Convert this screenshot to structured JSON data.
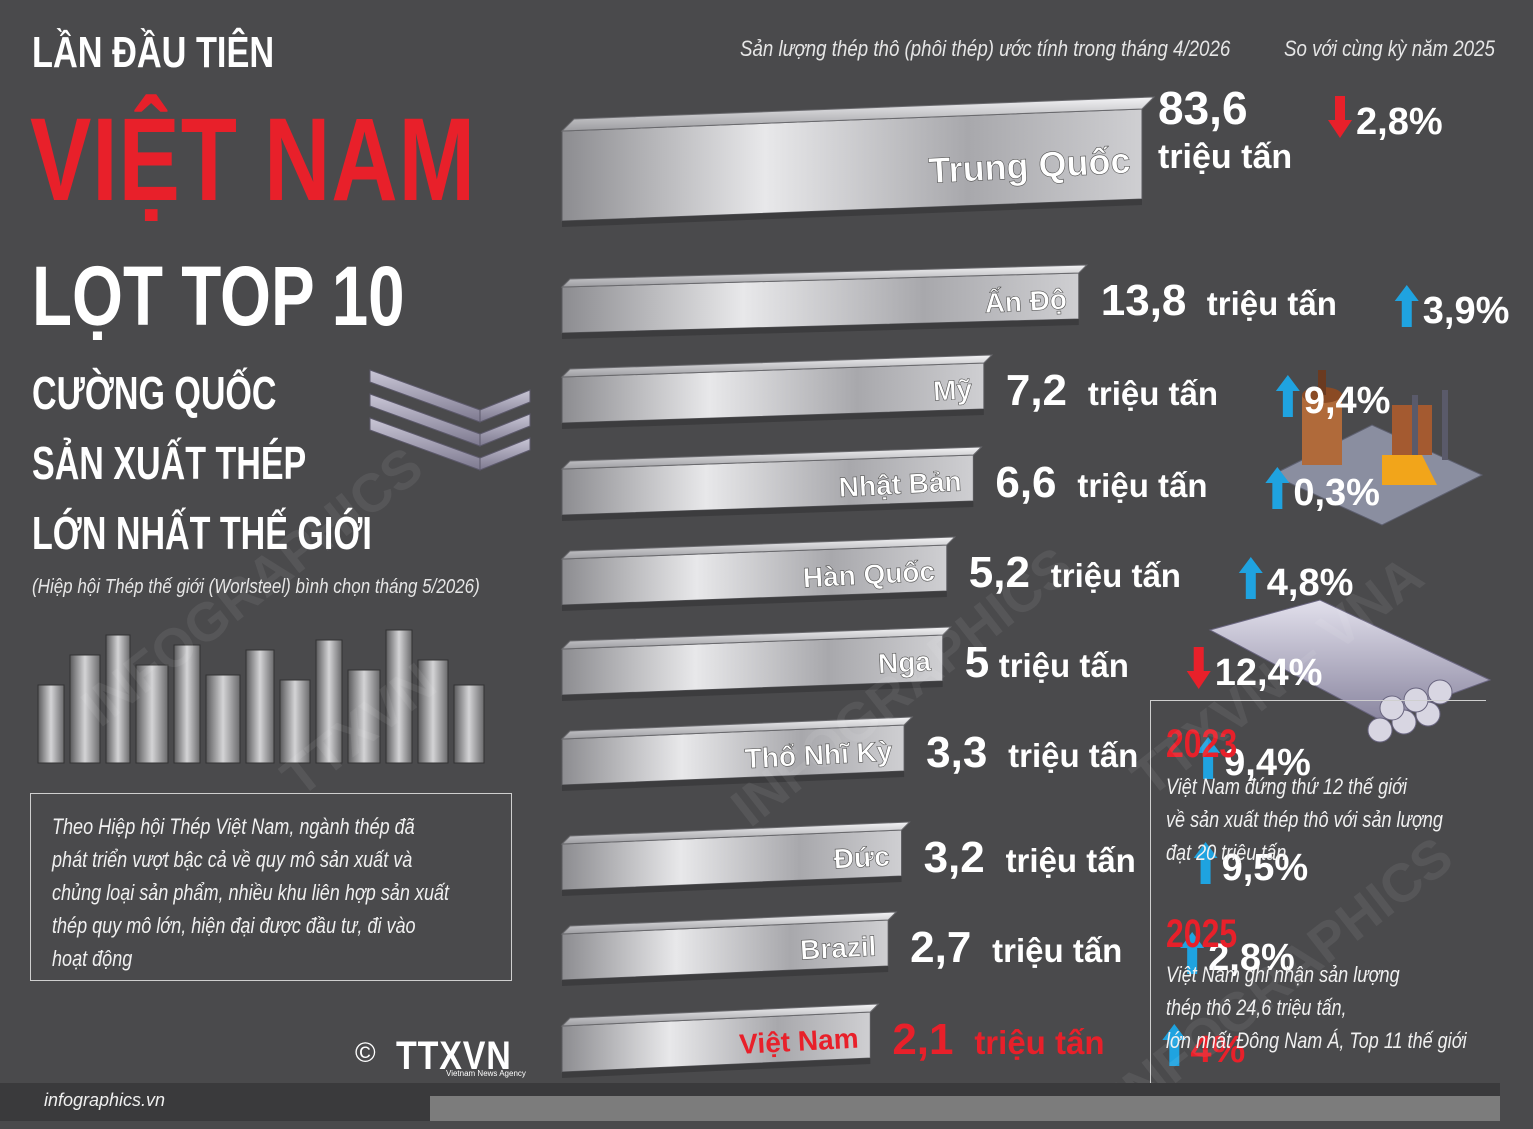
{
  "header": {
    "title_small": "LẦN ĐẦU TIÊN",
    "title_big": "VIỆT NAM",
    "title_top": "LỌT TOP 10",
    "subtitle_lines": [
      "CƯỜNG QUỐC",
      "SẢN XUẤT THÉP",
      "LỚN NHẤT THẾ GIỚI"
    ],
    "source_note": "(Hiệp hội Thép thế giới (Worlsteel) bình chọn tháng 5/2026)",
    "column_production": "Sản lượng thép thô (phôi thép) ước tính trong tháng 4/2026",
    "column_compare": "So với cùng kỳ năm 2025"
  },
  "info_box": {
    "lines": [
      "Theo Hiệp hội Thép Việt Nam, ngành thép đã",
      "phát triển vượt bậc cả về quy mô sản xuất và",
      "chủng loại sản phẩm, nhiều khu liên hợp sản xuất",
      "thép quy mô lớn, hiện đại được đầu tư, đi vào",
      "hoạt động"
    ]
  },
  "notes": [
    {
      "year": "2023",
      "lines": [
        "Việt Nam đứng thứ 12 thế giới",
        "về sản xuất thép thô với sản lượng",
        "đạt 20 triệu tấn"
      ]
    },
    {
      "year": "2025",
      "lines": [
        "Việt Nam ghi nhận sản lượng",
        "thép thô 24,6 triệu tấn,",
        "lớn nhất Đông Nam Á, Top 11 thế giới"
      ]
    }
  ],
  "footer": {
    "site": "infographics.vn",
    "copyright": "©",
    "logo": "TTXVN",
    "logo_sub": "Vietnam News Agency"
  },
  "watermarks": [
    "INFOGRAPHICS",
    "TTXVN",
    "INFOGRAPHICS",
    "TTXVN – VNA",
    "INFOGRAPHICS"
  ],
  "colors": {
    "background": "#4a4a4c",
    "accent_red": "#e8202a",
    "up_arrow": "#1fa3e0",
    "down_arrow": "#e8202a",
    "steel": "#b9b9bb"
  },
  "chart_data": {
    "type": "bar",
    "unit": "triệu tấn",
    "categories": [
      "Trung Quốc",
      "Ấn Độ",
      "Mỹ",
      "Nhật Bản",
      "Hàn Quốc",
      "Nga",
      "Thổ Nhĩ Kỳ",
      "Đức",
      "Brazil",
      "Việt Nam"
    ],
    "values": [
      83.6,
      13.8,
      7.2,
      6.6,
      5.2,
      5,
      3.3,
      3.2,
      2.7,
      2.1
    ],
    "value_labels": [
      "83,6",
      "13,8",
      "7,2",
      "6,6",
      "5,2",
      "5",
      "3,3",
      "3,2",
      "2,7",
      "2,1"
    ],
    "change_labels": [
      "2,8%",
      "3,9%",
      "9,4%",
      "0,3%",
      "4,8%",
      "12,4%",
      "9,4%",
      "9,5%",
      "2,8%",
      "4%"
    ],
    "change_direction": [
      "down",
      "up",
      "up",
      "up",
      "up",
      "down",
      "up",
      "up",
      "up",
      "up"
    ],
    "highlight": "Việt Nam"
  }
}
